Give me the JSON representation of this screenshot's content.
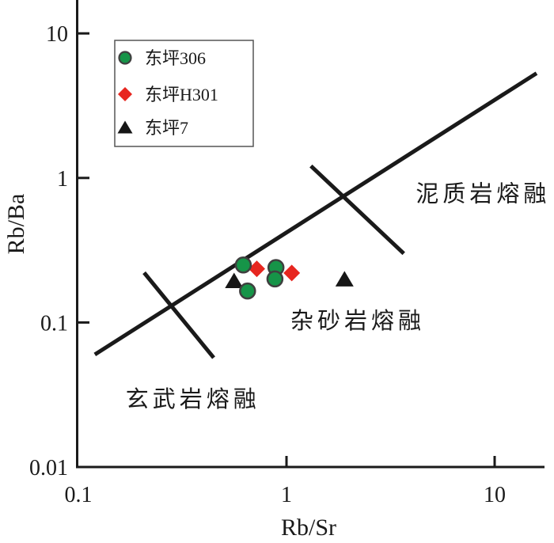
{
  "figure": {
    "background": "#ffffff",
    "axis_color": "#1a1a1a"
  },
  "chart_data": {
    "type": "scatter",
    "title": "",
    "xlabel": "Rb/Sr",
    "ylabel": "Rb/Ba",
    "xscale": "log",
    "yscale": "log",
    "xlim": [
      0.1,
      17
    ],
    "ylim": [
      0.01,
      17
    ],
    "grid": false,
    "legend_position": "top-left",
    "x_ticks": [
      {
        "value": 0.1,
        "label": "0.1",
        "has_tick": false
      },
      {
        "value": 1,
        "label": "1",
        "has_tick": true
      },
      {
        "value": 10,
        "label": "10",
        "has_tick": true
      }
    ],
    "y_ticks": [
      {
        "value": 0.01,
        "label": "0.01",
        "has_tick": false
      },
      {
        "value": 0.1,
        "label": "0.1",
        "has_tick": true
      },
      {
        "value": 1,
        "label": "1",
        "has_tick": true
      },
      {
        "value": 10,
        "label": "10",
        "has_tick": true
      }
    ],
    "series": [
      {
        "name": "东坪306",
        "marker": "circle",
        "color": "#169448",
        "stroke": "#3f3f3f",
        "points": [
          [
            0.62,
            0.25
          ],
          [
            0.89,
            0.24
          ],
          [
            0.88,
            0.2
          ],
          [
            0.65,
            0.165
          ]
        ]
      },
      {
        "name": "东坪H301",
        "marker": "diamond",
        "color": "#e7261f",
        "stroke": "none",
        "points": [
          [
            0.72,
            0.235
          ],
          [
            1.06,
            0.22
          ]
        ]
      },
      {
        "name": "东坪7",
        "marker": "triangle",
        "color": "#161616",
        "stroke": "none",
        "points": [
          [
            0.56,
            0.195
          ],
          [
            1.9,
            0.2
          ]
        ]
      }
    ],
    "lines": [
      {
        "name": "melting-trend-line",
        "x1": 0.12,
        "y1": 0.06,
        "x2": 15.9,
        "y2": 5.3
      },
      {
        "name": "field-divider-lower",
        "x1": 0.207,
        "y1": 0.221,
        "x2": 0.447,
        "y2": 0.057
      },
      {
        "name": "field-divider-upper",
        "x1": 1.31,
        "y1": 1.21,
        "x2": 3.66,
        "y2": 0.3
      }
    ],
    "annotations": [
      {
        "text": "泥质岩熔融",
        "x": 8.8,
        "y": 0.78,
        "meaning": "pelite melting field"
      },
      {
        "text": "杂砂岩熔融",
        "x": 2.2,
        "y": 0.103,
        "meaning": "graywacke melting field"
      },
      {
        "text": "玄武岩熔融",
        "x": 0.355,
        "y": 0.0295,
        "meaning": "basalt melting field"
      }
    ]
  }
}
